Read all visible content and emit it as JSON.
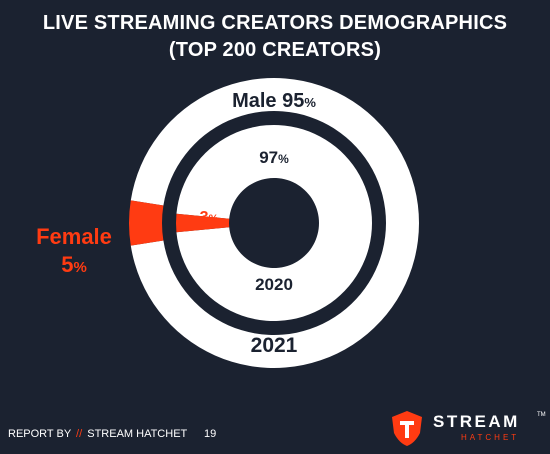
{
  "title_line1": "LIVE STREAMING CREATORS DEMOGRAPHICS",
  "title_line2": "(TOP 200 CREATORS)",
  "footer": {
    "report_by": "REPORT BY",
    "slash": "//",
    "brand": "STREAM HATCHET",
    "page_number": "19"
  },
  "logo": {
    "word": "STREAM",
    "tm": "TM",
    "sub": "HATCHET"
  },
  "colors": {
    "background": "#1b2230",
    "male": "#ffffff",
    "female": "#ff3b12",
    "text_dark": "#1b2230"
  },
  "chart_data": {
    "type": "pie",
    "title": "LIVE STREAMING CREATORS DEMOGRAPHICS (TOP 200 CREATORS)",
    "rings": [
      {
        "name": "2021",
        "categories": [
          "Male",
          "Female"
        ],
        "values": [
          95,
          5
        ],
        "unit": "%"
      },
      {
        "name": "2020",
        "categories": [
          "Male",
          "Female"
        ],
        "values": [
          97,
          3
        ],
        "unit": "%"
      }
    ],
    "labels": {
      "male_2021": "Male 95",
      "female_2021_name": "Female",
      "female_2021_value": "5",
      "male_2020": "97",
      "female_2020": "3",
      "percent": "%",
      "year_outer": "2021",
      "year_inner": "2020"
    }
  }
}
